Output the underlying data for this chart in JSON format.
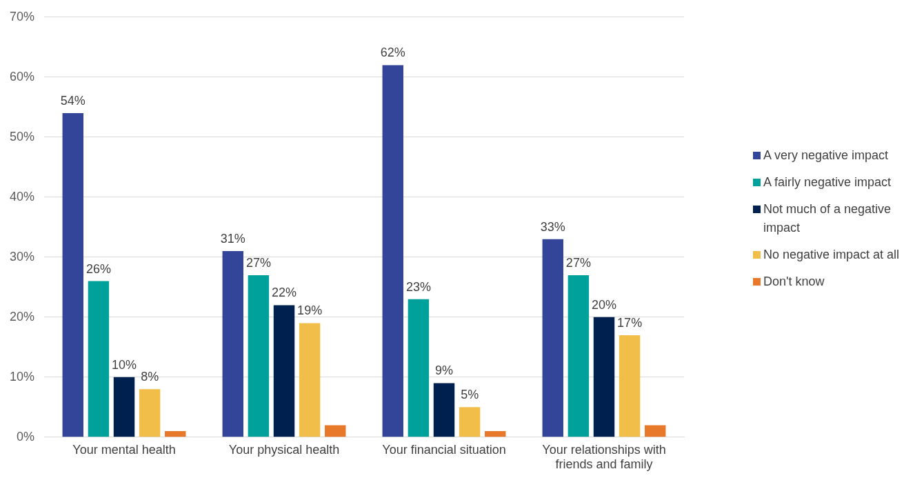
{
  "chart_data": {
    "type": "bar",
    "categories": [
      "Your mental health",
      "Your physical health",
      "Your financial situation",
      "Your relationships with friends and family"
    ],
    "ylim": [
      0,
      70
    ],
    "yticks": [
      {
        "value": 0,
        "label": "0%"
      },
      {
        "value": 10,
        "label": "10%"
      },
      {
        "value": 20,
        "label": "20%"
      },
      {
        "value": 30,
        "label": "30%"
      },
      {
        "value": 40,
        "label": "40%"
      },
      {
        "value": 50,
        "label": "50%"
      },
      {
        "value": 60,
        "label": "60%"
      },
      {
        "value": 70,
        "label": "70%"
      }
    ],
    "grid": "y",
    "legend": "right",
    "series": [
      {
        "name": "A very negative impact",
        "color": "#324599",
        "values": [
          54,
          31,
          62,
          33
        ],
        "value_labels": [
          "54%",
          "31%",
          "62%",
          "33%"
        ]
      },
      {
        "name": "A fairly negative impact",
        "color": "#00a19a",
        "values": [
          26,
          27,
          23,
          27
        ],
        "value_labels": [
          "26%",
          "27%",
          "23%",
          "27%"
        ]
      },
      {
        "name": "Not much of a negative impact",
        "color": "#00214f",
        "values": [
          10,
          22,
          9,
          20
        ],
        "value_labels": [
          "10%",
          "22%",
          "9%",
          "20%"
        ]
      },
      {
        "name": "No negative impact at all",
        "color": "#f2be4a",
        "values": [
          8,
          19,
          5,
          17
        ],
        "value_labels": [
          "8%",
          "19%",
          "5%",
          "17%"
        ]
      },
      {
        "name": "Don't know",
        "color": "#e8782a",
        "values": [
          1,
          2,
          1,
          2
        ],
        "value_labels": [
          null,
          null,
          null,
          null
        ]
      }
    ]
  }
}
